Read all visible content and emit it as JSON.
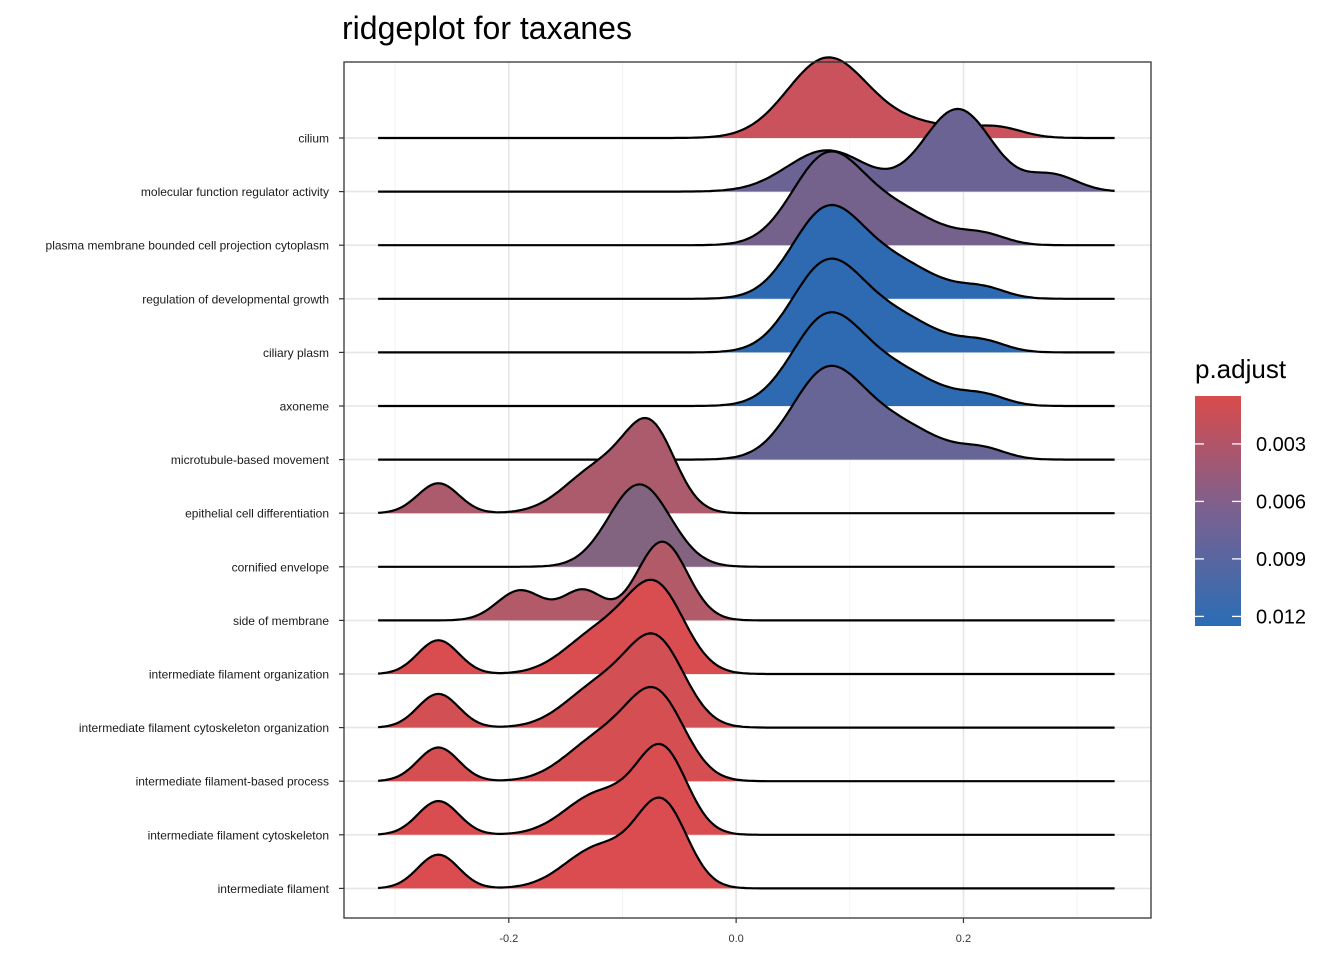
{
  "chart_data": {
    "type": "ridgeline",
    "title": "ridgeplot for taxanes",
    "xlabel": "",
    "ylabel": "",
    "xlim": [
      -0.345,
      0.365
    ],
    "x_ticks": [
      -0.2,
      0.0,
      0.2
    ],
    "x_tick_labels": [
      "-0.2",
      "0.0",
      "0.2"
    ],
    "grid": true,
    "legend": {
      "title": "p.adjust",
      "position": "right",
      "type": "colorbar",
      "range": [
        0.0005,
        0.0125
      ],
      "ticks": [
        0.003,
        0.006,
        0.009,
        0.012
      ],
      "tick_labels": [
        "0.003",
        "0.006",
        "0.009",
        "0.012"
      ],
      "low_color": "#d94b4b",
      "high_color": "#2a6db5"
    },
    "x_range": [
      -0.315,
      0.333
    ],
    "categories": [
      "cilium",
      "molecular function regulator activity",
      "plasma membrane bounded cell projection cytoplasm",
      "regulation of developmental growth",
      "ciliary plasm",
      "axoneme",
      "microtubule-based movement",
      "epithelial cell differentiation",
      "cornified envelope",
      "side of membrane",
      "intermediate filament organization",
      "intermediate filament cytoskeleton organization",
      "intermediate filament-based process",
      "intermediate filament cytoskeleton",
      "intermediate filament"
    ],
    "series": [
      {
        "p_adjust": 0.0035,
        "color": "#c9525c",
        "peaks": [
          {
            "x": 0.08,
            "sd": 0.035,
            "h": 1.05
          },
          {
            "x": 0.16,
            "sd": 0.04,
            "h": 0.18
          },
          {
            "x": 0.23,
            "sd": 0.022,
            "h": 0.12
          }
        ]
      },
      {
        "p_adjust": 0.009,
        "color": "#6b6394",
        "peaks": [
          {
            "x": 0.08,
            "sd": 0.035,
            "h": 0.55
          },
          {
            "x": 0.195,
            "sd": 0.03,
            "h": 1.1
          },
          {
            "x": 0.278,
            "sd": 0.022,
            "h": 0.22
          }
        ]
      },
      {
        "p_adjust": 0.008,
        "color": "#74618c",
        "peaks": [
          {
            "x": 0.078,
            "sd": 0.03,
            "h": 1.05
          },
          {
            "x": 0.135,
            "sd": 0.04,
            "h": 0.5
          },
          {
            "x": 0.218,
            "sd": 0.02,
            "h": 0.12
          }
        ]
      },
      {
        "p_adjust": 0.012,
        "color": "#2d6ab2",
        "peaks": [
          {
            "x": 0.078,
            "sd": 0.03,
            "h": 1.05
          },
          {
            "x": 0.135,
            "sd": 0.04,
            "h": 0.5
          },
          {
            "x": 0.218,
            "sd": 0.02,
            "h": 0.12
          }
        ]
      },
      {
        "p_adjust": 0.012,
        "color": "#2d6ab2",
        "peaks": [
          {
            "x": 0.078,
            "sd": 0.03,
            "h": 1.05
          },
          {
            "x": 0.135,
            "sd": 0.04,
            "h": 0.5
          },
          {
            "x": 0.218,
            "sd": 0.02,
            "h": 0.12
          }
        ]
      },
      {
        "p_adjust": 0.012,
        "color": "#2d6ab2",
        "peaks": [
          {
            "x": 0.078,
            "sd": 0.03,
            "h": 1.05
          },
          {
            "x": 0.135,
            "sd": 0.04,
            "h": 0.5
          },
          {
            "x": 0.218,
            "sd": 0.02,
            "h": 0.12
          }
        ]
      },
      {
        "p_adjust": 0.009,
        "color": "#676596",
        "peaks": [
          {
            "x": 0.078,
            "sd": 0.03,
            "h": 1.05
          },
          {
            "x": 0.135,
            "sd": 0.04,
            "h": 0.5
          },
          {
            "x": 0.218,
            "sd": 0.02,
            "h": 0.12
          }
        ]
      },
      {
        "p_adjust": 0.005,
        "color": "#ab5b6c",
        "peaks": [
          {
            "x": -0.262,
            "sd": 0.018,
            "h": 0.4
          },
          {
            "x": -0.12,
            "sd": 0.03,
            "h": 0.6
          },
          {
            "x": -0.075,
            "sd": 0.022,
            "h": 1.05
          }
        ]
      },
      {
        "p_adjust": 0.0075,
        "color": "#826480",
        "peaks": [
          {
            "x": -0.085,
            "sd": 0.027,
            "h": 1.1
          }
        ]
      },
      {
        "p_adjust": 0.005,
        "color": "#b25a68",
        "peaks": [
          {
            "x": -0.19,
            "sd": 0.02,
            "h": 0.4
          },
          {
            "x": -0.135,
            "sd": 0.018,
            "h": 0.4
          },
          {
            "x": -0.065,
            "sd": 0.022,
            "h": 1.05
          }
        ]
      },
      {
        "p_adjust": 0.001,
        "color": "#d94d50",
        "peaks": [
          {
            "x": -0.262,
            "sd": 0.018,
            "h": 0.45
          },
          {
            "x": -0.12,
            "sd": 0.03,
            "h": 0.55
          },
          {
            "x": -0.07,
            "sd": 0.025,
            "h": 1.1
          }
        ]
      },
      {
        "p_adjust": 0.0015,
        "color": "#d24f53",
        "peaks": [
          {
            "x": -0.262,
            "sd": 0.018,
            "h": 0.45
          },
          {
            "x": -0.12,
            "sd": 0.03,
            "h": 0.55
          },
          {
            "x": -0.07,
            "sd": 0.025,
            "h": 1.1
          }
        ]
      },
      {
        "p_adjust": 0.0012,
        "color": "#d44e52",
        "peaks": [
          {
            "x": -0.262,
            "sd": 0.018,
            "h": 0.45
          },
          {
            "x": -0.12,
            "sd": 0.03,
            "h": 0.55
          },
          {
            "x": -0.07,
            "sd": 0.025,
            "h": 1.1
          }
        ]
      },
      {
        "p_adjust": 0.001,
        "color": "#d94d50",
        "peaks": [
          {
            "x": -0.262,
            "sd": 0.018,
            "h": 0.45
          },
          {
            "x": -0.12,
            "sd": 0.03,
            "h": 0.55
          },
          {
            "x": -0.065,
            "sd": 0.022,
            "h": 1.1
          }
        ]
      },
      {
        "p_adjust": 0.0008,
        "color": "#da4c4f",
        "peaks": [
          {
            "x": -0.262,
            "sd": 0.018,
            "h": 0.45
          },
          {
            "x": -0.12,
            "sd": 0.03,
            "h": 0.55
          },
          {
            "x": -0.065,
            "sd": 0.022,
            "h": 1.1
          }
        ]
      }
    ]
  }
}
